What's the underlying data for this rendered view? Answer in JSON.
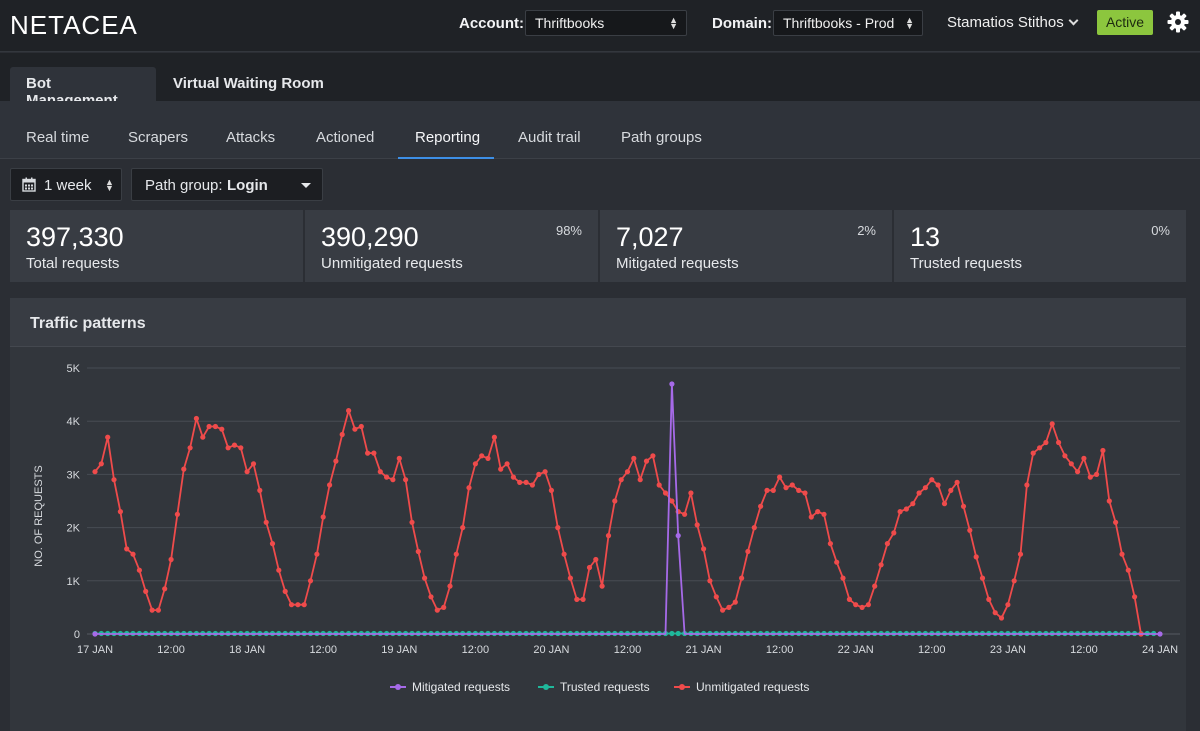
{
  "header": {
    "logo": "NETACEA",
    "account_label": "Account:",
    "account_value": "Thriftbooks",
    "domain_label": "Domain:",
    "domain_value": "Thriftbooks - Prod",
    "user_name": "Stamatios Stithos",
    "status_badge": "Active",
    "status_color": "#8cc63e"
  },
  "product_tabs": [
    {
      "label": "Bot Management",
      "active": true
    },
    {
      "label": "Virtual Waiting Room",
      "active": false
    }
  ],
  "sub_tabs": [
    {
      "label": "Real time"
    },
    {
      "label": "Scrapers"
    },
    {
      "label": "Attacks"
    },
    {
      "label": "Actioned"
    },
    {
      "label": "Reporting",
      "active": true
    },
    {
      "label": "Audit trail"
    },
    {
      "label": "Path groups"
    }
  ],
  "filters": {
    "period": "1 week",
    "path_group_label": "Path group:",
    "path_group_value": "Login"
  },
  "stats": [
    {
      "value": "397,330",
      "label": "Total requests",
      "pct": ""
    },
    {
      "value": "390,290",
      "label": "Unmitigated requests",
      "pct": "98%"
    },
    {
      "value": "7,027",
      "label": "Mitigated requests",
      "pct": "2%"
    },
    {
      "value": "13",
      "label": "Trusted requests",
      "pct": "0%"
    }
  ],
  "panel": {
    "title": "Traffic patterns"
  },
  "chart_data": {
    "type": "line",
    "ylabel": "NO. OF REQUESTS",
    "ylim": [
      0,
      5000
    ],
    "y_ticks": [
      "0",
      "1K",
      "2K",
      "3K",
      "4K",
      "5K"
    ],
    "x_tick_labels": [
      "17 JAN",
      "12:00",
      "18 JAN",
      "12:00",
      "19 JAN",
      "12:00",
      "20 JAN",
      "12:00",
      "21 JAN",
      "12:00",
      "22 JAN",
      "12:00",
      "23 JAN",
      "12:00",
      "24 JAN"
    ],
    "x_unit": "hours since 17 JAN 00:00",
    "legend_position": "bottom-center",
    "series": [
      {
        "name": "Mitigated requests",
        "color": "#a66ae8",
        "points": [
          [
            0,
            0
          ],
          [
            88,
            0
          ],
          [
            90,
            0
          ],
          [
            91,
            4700
          ],
          [
            92,
            1850
          ],
          [
            93,
            0
          ],
          [
            168,
            0
          ]
        ]
      },
      {
        "name": "Trusted requests",
        "color": "#1fb89b",
        "points": [
          [
            0,
            10
          ],
          [
            168,
            10
          ]
        ]
      },
      {
        "name": "Unmitigated requests",
        "color": "#ef4b4b",
        "points": [
          [
            0,
            3050
          ],
          [
            1,
            3200
          ],
          [
            2,
            3700
          ],
          [
            3,
            2900
          ],
          [
            4,
            2300
          ],
          [
            5,
            1600
          ],
          [
            6,
            1500
          ],
          [
            7,
            1200
          ],
          [
            8,
            800
          ],
          [
            9,
            450
          ],
          [
            10,
            450
          ],
          [
            11,
            850
          ],
          [
            12,
            1400
          ],
          [
            13,
            2250
          ],
          [
            14,
            3100
          ],
          [
            15,
            3500
          ],
          [
            16,
            4050
          ],
          [
            17,
            3700
          ],
          [
            18,
            3900
          ],
          [
            19,
            3900
          ],
          [
            20,
            3850
          ],
          [
            21,
            3500
          ],
          [
            22,
            3550
          ],
          [
            23,
            3500
          ],
          [
            24,
            3050
          ],
          [
            25,
            3200
          ],
          [
            26,
            2700
          ],
          [
            27,
            2100
          ],
          [
            28,
            1700
          ],
          [
            29,
            1200
          ],
          [
            30,
            800
          ],
          [
            31,
            550
          ],
          [
            32,
            550
          ],
          [
            33,
            550
          ],
          [
            34,
            1000
          ],
          [
            35,
            1500
          ],
          [
            36,
            2200
          ],
          [
            37,
            2800
          ],
          [
            38,
            3250
          ],
          [
            39,
            3750
          ],
          [
            40,
            4200
          ],
          [
            41,
            3850
          ],
          [
            42,
            3900
          ],
          [
            43,
            3400
          ],
          [
            44,
            3400
          ],
          [
            45,
            3050
          ],
          [
            46,
            2950
          ],
          [
            47,
            2900
          ],
          [
            48,
            3300
          ],
          [
            49,
            2900
          ],
          [
            50,
            2100
          ],
          [
            51,
            1550
          ],
          [
            52,
            1050
          ],
          [
            53,
            700
          ],
          [
            54,
            450
          ],
          [
            55,
            500
          ],
          [
            56,
            900
          ],
          [
            57,
            1500
          ],
          [
            58,
            2000
          ],
          [
            59,
            2750
          ],
          [
            60,
            3200
          ],
          [
            61,
            3350
          ],
          [
            62,
            3300
          ],
          [
            63,
            3700
          ],
          [
            64,
            3100
          ],
          [
            65,
            3200
          ],
          [
            66,
            2950
          ],
          [
            67,
            2850
          ],
          [
            68,
            2850
          ],
          [
            69,
            2800
          ],
          [
            70,
            3000
          ],
          [
            71,
            3050
          ],
          [
            72,
            2700
          ],
          [
            73,
            2000
          ],
          [
            74,
            1500
          ],
          [
            75,
            1050
          ],
          [
            76,
            650
          ],
          [
            77,
            650
          ],
          [
            78,
            1250
          ],
          [
            79,
            1400
          ],
          [
            80,
            900
          ],
          [
            81,
            1850
          ],
          [
            82,
            2500
          ],
          [
            83,
            2900
          ],
          [
            84,
            3050
          ],
          [
            85,
            3300
          ],
          [
            86,
            2900
          ],
          [
            87,
            3250
          ],
          [
            88,
            3350
          ],
          [
            89,
            2800
          ],
          [
            90,
            2650
          ],
          [
            91,
            2500
          ],
          [
            92,
            2300
          ],
          [
            93,
            2250
          ],
          [
            94,
            2650
          ],
          [
            95,
            2050
          ],
          [
            96,
            1600
          ],
          [
            97,
            1000
          ],
          [
            98,
            700
          ],
          [
            99,
            450
          ],
          [
            100,
            500
          ],
          [
            101,
            600
          ],
          [
            102,
            1050
          ],
          [
            103,
            1550
          ],
          [
            104,
            2000
          ],
          [
            105,
            2400
          ],
          [
            106,
            2700
          ],
          [
            107,
            2700
          ],
          [
            108,
            2950
          ],
          [
            109,
            2750
          ],
          [
            110,
            2800
          ],
          [
            111,
            2700
          ],
          [
            112,
            2650
          ],
          [
            113,
            2200
          ],
          [
            114,
            2300
          ],
          [
            115,
            2250
          ],
          [
            116,
            1700
          ],
          [
            117,
            1350
          ],
          [
            118,
            1050
          ],
          [
            119,
            650
          ],
          [
            120,
            550
          ],
          [
            121,
            500
          ],
          [
            122,
            550
          ],
          [
            123,
            900
          ],
          [
            124,
            1300
          ],
          [
            125,
            1700
          ],
          [
            126,
            1900
          ],
          [
            127,
            2300
          ],
          [
            128,
            2350
          ],
          [
            129,
            2450
          ],
          [
            130,
            2650
          ],
          [
            131,
            2750
          ],
          [
            132,
            2900
          ],
          [
            133,
            2800
          ],
          [
            134,
            2450
          ],
          [
            135,
            2700
          ],
          [
            136,
            2850
          ],
          [
            137,
            2400
          ],
          [
            138,
            1950
          ],
          [
            139,
            1450
          ],
          [
            140,
            1050
          ],
          [
            141,
            650
          ],
          [
            142,
            400
          ],
          [
            143,
            300
          ],
          [
            144,
            550
          ],
          [
            145,
            1000
          ],
          [
            146,
            1500
          ],
          [
            147,
            2800
          ],
          [
            148,
            3400
          ],
          [
            149,
            3500
          ],
          [
            150,
            3600
          ],
          [
            151,
            3950
          ],
          [
            152,
            3600
          ],
          [
            153,
            3350
          ],
          [
            154,
            3200
          ],
          [
            155,
            3050
          ],
          [
            156,
            3300
          ],
          [
            157,
            2950
          ],
          [
            158,
            3000
          ],
          [
            159,
            3450
          ],
          [
            160,
            2500
          ],
          [
            161,
            2100
          ],
          [
            162,
            1500
          ],
          [
            163,
            1200
          ],
          [
            164,
            700
          ],
          [
            165,
            0
          ]
        ]
      }
    ]
  }
}
